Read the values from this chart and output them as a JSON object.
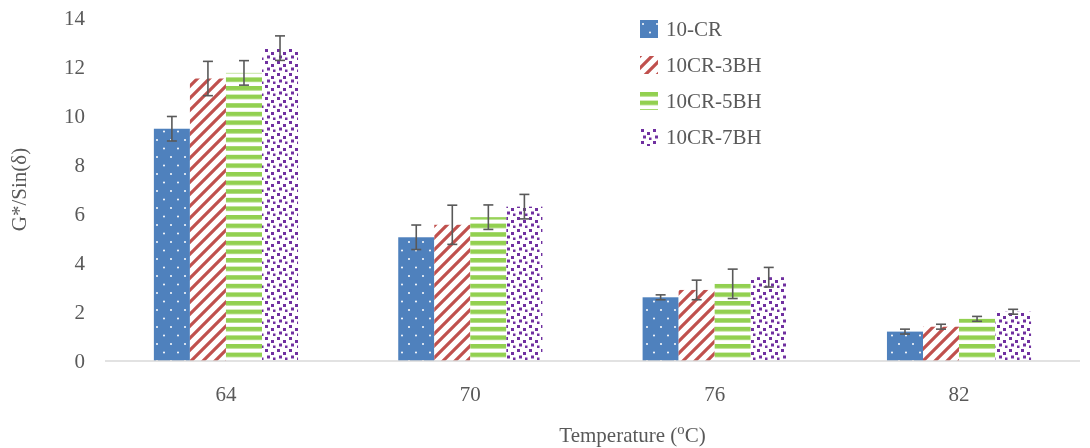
{
  "chart_data": {
    "type": "bar",
    "xlabel": "Temperature ($^{o}$C)",
    "ylabel": "G*/Sin(δ)",
    "categories": [
      "64",
      "70",
      "76",
      "82"
    ],
    "series": [
      {
        "name": "10-CR",
        "color": "#4f81bd",
        "values": [
          9.48,
          5.05,
          2.6,
          1.2
        ],
        "errors": [
          0.5,
          0.5,
          0.1,
          0.1
        ]
      },
      {
        "name": "10CR-3BH",
        "color": "#c0504d",
        "values": [
          11.53,
          5.56,
          2.9,
          1.4
        ],
        "errors": [
          0.7,
          0.8,
          0.4,
          0.1
        ]
      },
      {
        "name": "10CR-5BH",
        "color": "#92d050",
        "values": [
          11.76,
          5.87,
          3.15,
          1.72
        ],
        "errors": [
          0.5,
          0.5,
          0.6,
          0.1
        ]
      },
      {
        "name": "10CR-7BH",
        "color": "#7030a0",
        "values": [
          12.77,
          6.3,
          3.42,
          2.01
        ],
        "errors": [
          0.5,
          0.5,
          0.4,
          0.1
        ]
      }
    ],
    "ylim": [
      0,
      14
    ],
    "yticks": [
      0,
      2,
      4,
      6,
      8,
      10,
      12,
      14
    ],
    "legend": "top right",
    "grid": false
  }
}
